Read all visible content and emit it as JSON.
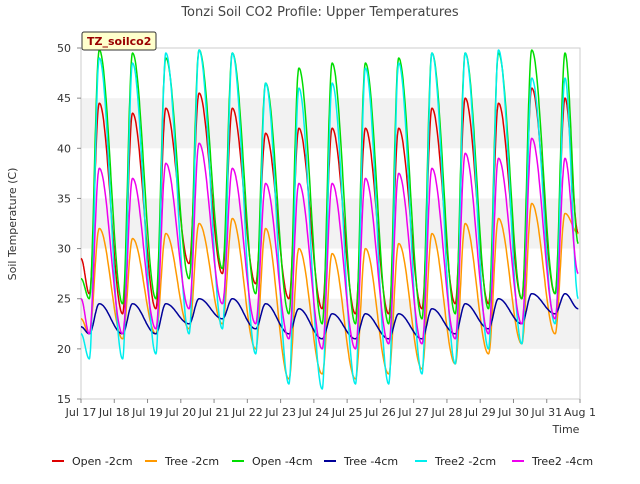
{
  "chart_data": {
    "type": "line",
    "title": "Tonzi Soil CO2 Profile: Upper Temperatures",
    "xlabel": "Time",
    "ylabel": "Soil Temperature (C)",
    "site_label": "TZ_soilco2",
    "xlim": [
      16.0,
      31.0
    ],
    "ylim": [
      15,
      50
    ],
    "y_ticks": [
      15,
      20,
      25,
      30,
      35,
      40,
      45,
      50
    ],
    "x_ticks": [
      "Jul 17",
      "Jul 18",
      "Jul 19",
      "Jul 20",
      "Jul 21",
      "Jul 22",
      "Jul 23",
      "Jul 24",
      "Jul 25",
      "Jul 26",
      "Jul 27",
      "Jul 28",
      "Jul 29",
      "Jul 30",
      "Jul 31",
      "Aug 1"
    ],
    "x_tick_days": [
      0,
      1,
      2,
      3,
      4,
      5,
      6,
      7,
      8,
      9,
      10,
      11,
      12,
      13,
      14,
      15
    ],
    "grid": "horizontal bands",
    "days": [
      "Jul 17",
      "Jul 18",
      "Jul 19",
      "Jul 20",
      "Jul 21",
      "Jul 22",
      "Jul 23",
      "Jul 24",
      "Jul 25",
      "Jul 26",
      "Jul 27",
      "Jul 28",
      "Jul 29",
      "Jul 30",
      "Jul 31"
    ],
    "peak_day_offset": 0.55,
    "series": [
      {
        "name": "Open -2cm",
        "color": "#dd0000",
        "start": 29.0,
        "end": 31.5,
        "daily_min": [
          25.5,
          23.5,
          24.0,
          28.5,
          27.5,
          26.5,
          25.0,
          24.0,
          23.5,
          23.5,
          24.0,
          24.5,
          24.5,
          25.0,
          25.5
        ],
        "daily_max": [
          44.5,
          43.5,
          44.0,
          45.5,
          44.0,
          41.5,
          42.0,
          42.0,
          42.0,
          42.0,
          44.0,
          45.0,
          44.5,
          46.0,
          45.0
        ]
      },
      {
        "name": "Tree -2cm",
        "color": "#ff9900",
        "start": 23.0,
        "end": 31.5,
        "daily_min": [
          21.5,
          21.0,
          21.5,
          22.0,
          22.5,
          20.0,
          17.0,
          17.5,
          17.0,
          17.5,
          18.0,
          18.5,
          19.5,
          20.5,
          21.5
        ],
        "daily_max": [
          32.0,
          31.0,
          31.5,
          32.5,
          33.0,
          32.0,
          30.0,
          29.5,
          30.0,
          30.5,
          31.5,
          32.5,
          33.0,
          34.5,
          33.5
        ]
      },
      {
        "name": "Open -4cm",
        "color": "#00dd00",
        "start": 27.0,
        "end": 30.5,
        "daily_min": [
          25.0,
          24.5,
          25.0,
          27.0,
          28.0,
          25.5,
          23.5,
          22.5,
          22.5,
          22.5,
          23.0,
          23.5,
          24.0,
          25.0,
          25.5
        ],
        "daily_max": [
          49.8,
          49.5,
          49.0,
          49.8,
          49.5,
          46.5,
          48.0,
          48.5,
          48.5,
          49.0,
          49.5,
          49.5,
          49.5,
          49.8,
          49.5
        ]
      },
      {
        "name": "Tree -4cm",
        "color": "#000099",
        "start": 22.2,
        "end": 24.0,
        "daily_min": [
          21.5,
          21.5,
          21.5,
          22.5,
          23.0,
          22.0,
          21.5,
          21.0,
          21.0,
          21.0,
          21.0,
          21.5,
          22.0,
          22.5,
          23.5
        ],
        "daily_max": [
          24.5,
          24.5,
          24.5,
          25.0,
          25.0,
          24.5,
          24.0,
          23.5,
          23.5,
          23.5,
          24.0,
          24.5,
          25.0,
          25.5,
          25.5
        ]
      },
      {
        "name": "Tree2 -2cm",
        "color": "#00eeee",
        "start": 21.5,
        "end": 25.0,
        "daily_min": [
          19.0,
          19.0,
          19.5,
          21.5,
          22.0,
          19.5,
          16.5,
          16.0,
          16.5,
          16.5,
          17.5,
          18.5,
          20.0,
          20.5,
          22.5
        ],
        "daily_max": [
          49.0,
          48.5,
          49.5,
          49.8,
          49.5,
          46.5,
          46.0,
          46.5,
          48.0,
          48.5,
          49.5,
          49.5,
          49.8,
          47.0,
          47.0
        ]
      },
      {
        "name": "Tree2 -4cm",
        "color": "#ee00ee",
        "start": 25.0,
        "end": 27.5,
        "daily_min": [
          21.5,
          21.5,
          22.0,
          24.0,
          24.5,
          22.5,
          21.0,
          20.0,
          20.0,
          20.5,
          20.5,
          21.0,
          21.5,
          22.5,
          23.0
        ],
        "daily_max": [
          38.0,
          37.0,
          38.5,
          40.5,
          38.0,
          36.5,
          36.5,
          36.5,
          37.0,
          37.5,
          38.0,
          39.5,
          39.0,
          41.0,
          39.0
        ]
      }
    ]
  }
}
